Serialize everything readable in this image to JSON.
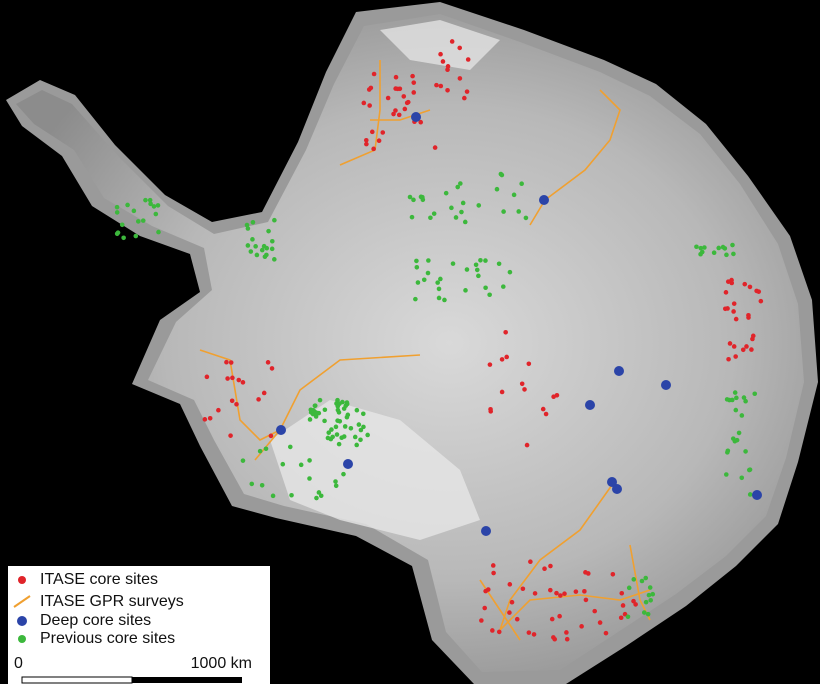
{
  "legend": {
    "items": [
      {
        "label": "ITASE core sites"
      },
      {
        "label": "ITASE GPR surveys"
      },
      {
        "label": "Deep core sites"
      },
      {
        "label": "Previous core sites"
      }
    ]
  },
  "scale_bar": {
    "start_label": "0",
    "end_label": "1000 km"
  }
}
